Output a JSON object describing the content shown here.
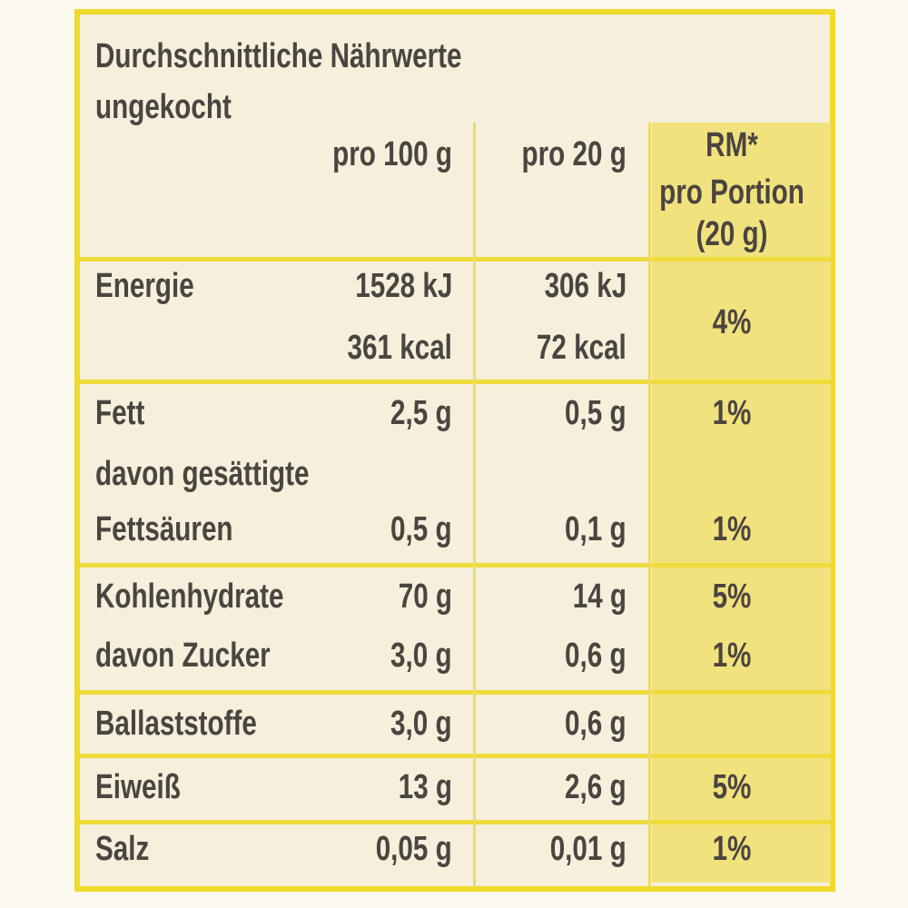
{
  "header": {
    "title": "Durchschnittliche Nährwerte",
    "subtitle": "ungekocht"
  },
  "table": {
    "columns": {
      "per100": "pro 100 g",
      "per20": "pro 20 g",
      "rm": [
        "RM*",
        "pro Portion",
        "(20 g)"
      ]
    },
    "rows": [
      {
        "label": [
          "Energie"
        ],
        "per100": [
          "1528 kJ",
          "361 kcal"
        ],
        "per20": [
          "306 kJ",
          "72 kcal"
        ],
        "rm": "4%"
      },
      {
        "label": [
          "Fett"
        ],
        "per100": [
          "2,5 g"
        ],
        "per20": [
          "0,5 g"
        ],
        "rm": "1%"
      },
      {
        "label": [
          "davon gesättigte",
          "Fettsäuren"
        ],
        "per100": [
          "0,5 g"
        ],
        "per20": [
          "0,1 g"
        ],
        "rm": "1%"
      },
      {
        "label": [
          "Kohlenhydrate"
        ],
        "per100": [
          "70 g"
        ],
        "per20": [
          "14 g"
        ],
        "rm": "5%"
      },
      {
        "label": [
          "davon Zucker"
        ],
        "per100": [
          "3,0 g"
        ],
        "per20": [
          "0,6 g"
        ],
        "rm": "1%"
      },
      {
        "label": [
          "Ballaststoffe"
        ],
        "per100": [
          "3,0 g"
        ],
        "per20": [
          "0,6 g"
        ]
      },
      {
        "label": [
          "Eiweiß"
        ],
        "per100": [
          "13 g"
        ],
        "per20": [
          "2,6 g"
        ],
        "rm": "5%"
      },
      {
        "label": [
          "Salz"
        ],
        "per100": [
          "0,05 g"
        ],
        "per20": [
          "0,01 g"
        ],
        "rm": "1%"
      }
    ]
  }
}
